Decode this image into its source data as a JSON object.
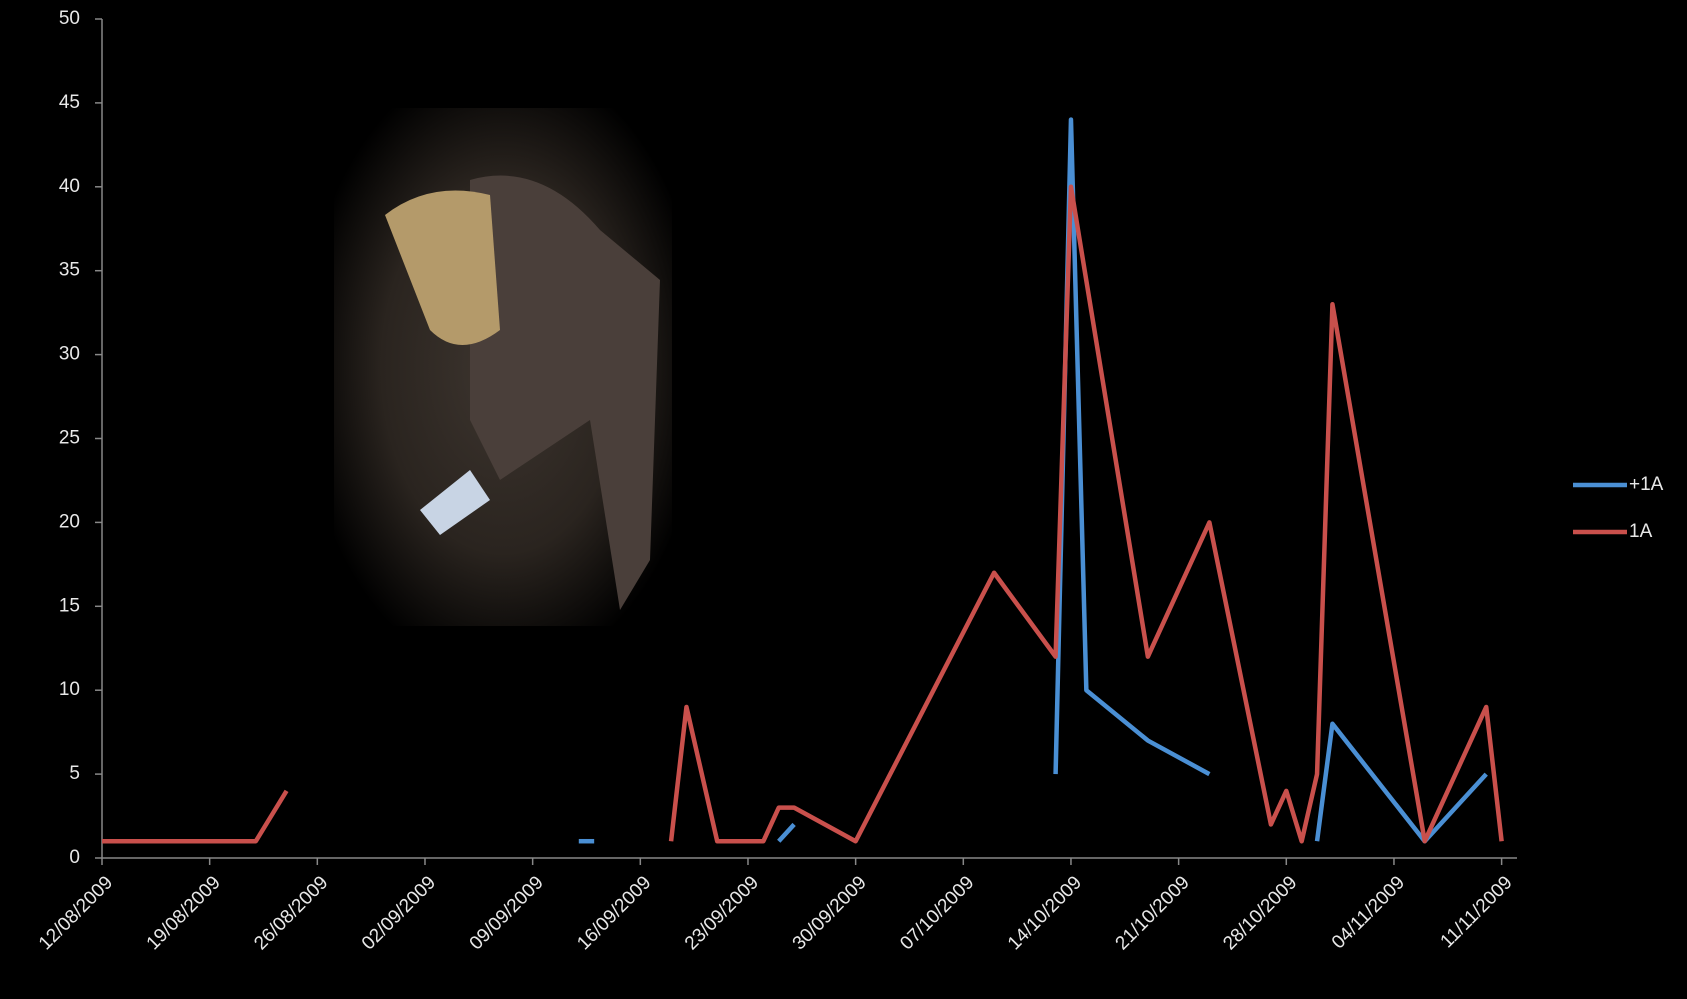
{
  "chart_data": {
    "type": "line",
    "series": [
      {
        "name": "+1A",
        "color": "#4a8fd4",
        "x": [
          "12/09/2009",
          "13/09/2009",
          null,
          "25/09/2009",
          "26/09/2009",
          null,
          "13/10/2009",
          "14/10/2009",
          "15/10/2009",
          "19/10/2009",
          "23/10/2009",
          null,
          "30/10/2009",
          "31/10/2009",
          "06/11/2009",
          "10/11/2009"
        ],
        "values": [
          1,
          1,
          null,
          1,
          2,
          null,
          5,
          44,
          10,
          7,
          5,
          null,
          1,
          8,
          1,
          5
        ]
      },
      {
        "name": "1A",
        "color": "#c9504c",
        "x": [
          "12/08/2009",
          "22/08/2009",
          "24/08/2009",
          null,
          "18/09/2009",
          "19/09/2009",
          "21/09/2009",
          "24/09/2009",
          "25/09/2009",
          "26/09/2009",
          "30/09/2009",
          "09/10/2009",
          "13/10/2009",
          "14/10/2009",
          "19/10/2009",
          "23/10/2009",
          "27/10/2009",
          "28/10/2009",
          "29/10/2009",
          "30/10/2009",
          "31/10/2009",
          "06/11/2009",
          "10/11/2009",
          "11/11/2009"
        ],
        "values": [
          1,
          1,
          4,
          null,
          1,
          9,
          1,
          1,
          3,
          3,
          1,
          17,
          12,
          40,
          12,
          20,
          2,
          4,
          1,
          5,
          33,
          1,
          9,
          1
        ]
      }
    ],
    "xlim": [
      "12/08/2009",
      "12/11/2009"
    ],
    "xticks": [
      "12/08/2009",
      "19/08/2009",
      "26/08/2009",
      "02/09/2009",
      "09/09/2009",
      "16/09/2009",
      "23/09/2009",
      "30/09/2009",
      "07/10/2009",
      "14/10/2009",
      "21/10/2009",
      "28/10/2009",
      "04/11/2009",
      "11/11/2009"
    ],
    "ylim": [
      0,
      50
    ],
    "yticks": [
      0,
      5,
      10,
      15,
      20,
      25,
      30,
      35,
      40,
      45,
      50
    ],
    "legend": "right"
  }
}
